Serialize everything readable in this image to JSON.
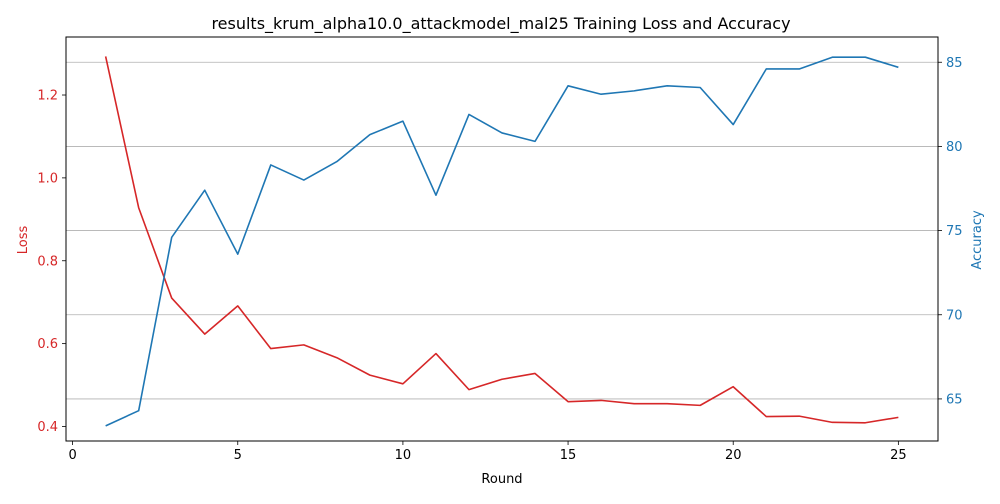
{
  "chart_data": {
    "type": "line",
    "title": "results_krum_alpha10.0_attackmodel_mal25 Training Loss and Accuracy",
    "xlabel": "Round",
    "y_left_label": "Loss",
    "y_right_label": "Accuracy",
    "x_ticks": [
      0,
      5,
      10,
      15,
      20,
      25
    ],
    "y_left_ticks": [
      "0.4",
      "0.6",
      "0.8",
      "1.0",
      "1.2"
    ],
    "y_right_ticks": [
      "65",
      "70",
      "75",
      "80",
      "85"
    ],
    "xlim": [
      -0.2,
      26.2
    ],
    "ylim_left": [
      0.365,
      1.34
    ],
    "ylim_right": [
      62.5,
      86.5
    ],
    "grid": "horizontal, right axis",
    "x": [
      1,
      2,
      3,
      4,
      5,
      6,
      7,
      8,
      9,
      10,
      11,
      12,
      13,
      14,
      15,
      16,
      17,
      18,
      19,
      20,
      21,
      22,
      23,
      24,
      25
    ],
    "series": [
      {
        "name": "Loss",
        "axis": "left",
        "color": "#d62728",
        "values": [
          1.293,
          0.928,
          0.71,
          0.623,
          0.691,
          0.588,
          0.597,
          0.566,
          0.524,
          0.503,
          0.576,
          0.489,
          0.514,
          0.528,
          0.46,
          0.463,
          0.455,
          0.455,
          0.451,
          0.496,
          0.424,
          0.425,
          0.41,
          0.409,
          0.422
        ]
      },
      {
        "name": "Accuracy",
        "axis": "right",
        "color": "#1f77b4",
        "values": [
          63.4,
          64.3,
          74.6,
          77.4,
          73.6,
          78.9,
          78.0,
          79.1,
          80.7,
          81.5,
          77.1,
          81.9,
          80.8,
          80.3,
          83.6,
          83.1,
          83.3,
          83.6,
          83.5,
          81.3,
          84.6,
          84.6,
          85.3,
          85.3,
          84.7
        ]
      }
    ]
  }
}
